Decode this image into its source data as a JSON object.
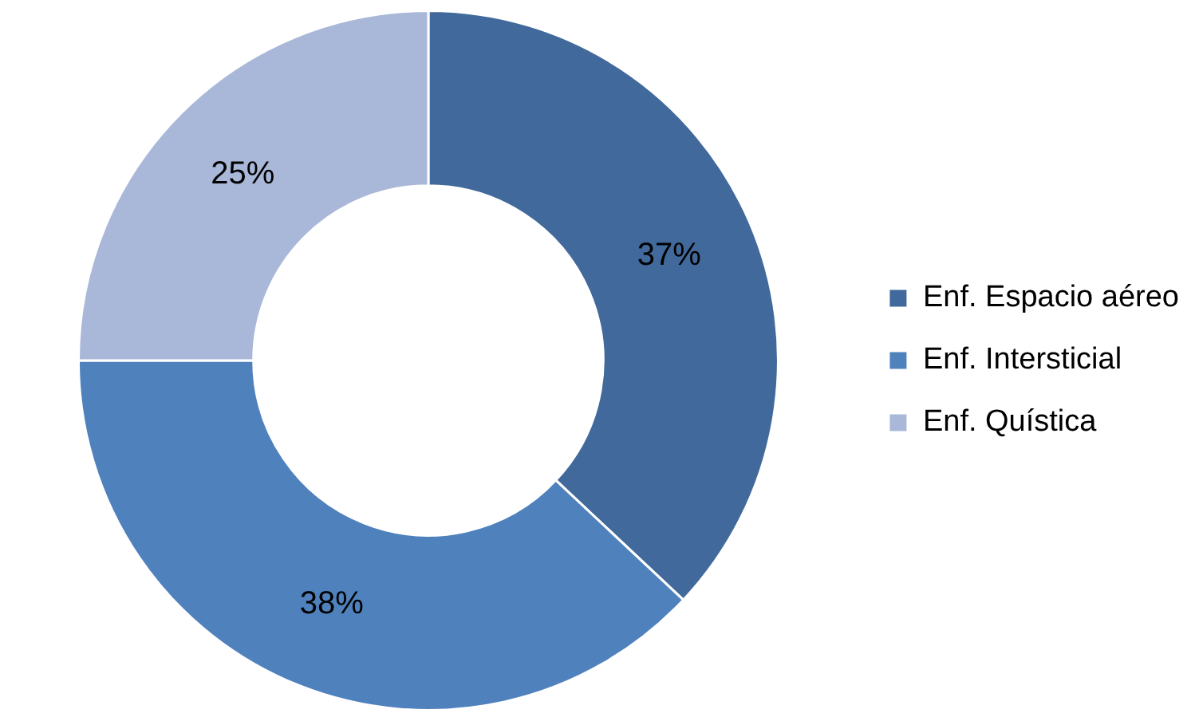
{
  "chart_data": {
    "type": "donut",
    "categories": [
      "Enf. Espacio aéreo",
      "Enf. Intersticial",
      "Enf. Quística"
    ],
    "values": [
      37,
      38,
      25
    ],
    "colors": [
      "#41699b",
      "#4f81bd",
      "#a9b8d8"
    ],
    "value_labels": [
      "37%",
      "38%",
      "25%"
    ],
    "legend": "right"
  }
}
